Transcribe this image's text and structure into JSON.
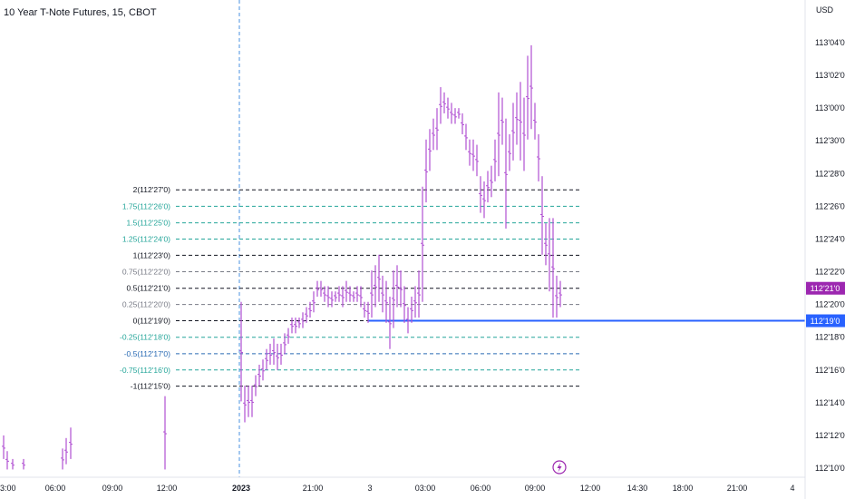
{
  "header": {
    "title": "10 Year T-Note Futures, 15, CBOT"
  },
  "colors": {
    "candle": "#b04fd2",
    "price_label_bg": "#9c27b0",
    "line_blue": "#2962ff",
    "fib_black": "#131722",
    "fib_teal": "#26a69a",
    "fib_blue": "#2a6bb4",
    "fib_grey": "#787b86",
    "session_line": "#4a90e2",
    "flash_icon": "#9c27b0"
  },
  "chart_data": {
    "type": "bar",
    "title": "10 Year T-Note Futures, 15, CBOT",
    "currency": "USD",
    "y_axis_ticks": [
      "113'04'0",
      "113'02'0",
      "113'00'0",
      "112'30'0",
      "112'28'0",
      "112'26'0",
      "112'24'0",
      "112'22'0",
      "112'20'0",
      "112'18'0",
      "112'16'0",
      "112'14'0",
      "112'12'0",
      "112'10'0"
    ],
    "y_axis_values": [
      113.125,
      113.0625,
      113.0,
      112.9375,
      112.875,
      112.8125,
      112.75,
      112.6875,
      112.625,
      112.5625,
      112.5,
      112.4375,
      112.375,
      112.3125
    ],
    "x_axis_ticks": [
      "3:00",
      "06:00",
      "09:00",
      "12:00",
      "2023",
      "21:00",
      "3",
      "03:00",
      "06:00",
      "09:00",
      "12:00",
      "14:30",
      "18:00",
      "21:00",
      "4"
    ],
    "current_price_label": "112'21'0",
    "current_price": 112.656,
    "horizontal_line_label": "112'19'0",
    "horizontal_line_value": 112.594,
    "fib_levels": [
      {
        "label": "2(112'27'0)",
        "value": 112.844,
        "color": "black"
      },
      {
        "label": "1.75(112'26'0)",
        "value": 112.8125,
        "color": "teal"
      },
      {
        "label": "1.5(112'25'0)",
        "value": 112.781,
        "color": "teal"
      },
      {
        "label": "1.25(112'24'0)",
        "value": 112.75,
        "color": "teal"
      },
      {
        "label": "1(112'23'0)",
        "value": 112.719,
        "color": "black"
      },
      {
        "label": "0.75(112'22'0)",
        "value": 112.6875,
        "color": "grey"
      },
      {
        "label": "0.5(112'21'0)",
        "value": 112.656,
        "color": "black"
      },
      {
        "label": "0.25(112'20'0)",
        "value": 112.625,
        "color": "grey"
      },
      {
        "label": "0(112'19'0)",
        "value": 112.594,
        "color": "black"
      },
      {
        "label": "-0.25(112'18'0)",
        "value": 112.5625,
        "color": "teal"
      },
      {
        "label": "-0.5(112'17'0)",
        "value": 112.531,
        "color": "blue"
      },
      {
        "label": "-0.75(112'16'0)",
        "value": 112.5,
        "color": "teal"
      },
      {
        "label": "-1(112'15'0)",
        "value": 112.469,
        "color": "black"
      }
    ]
  }
}
